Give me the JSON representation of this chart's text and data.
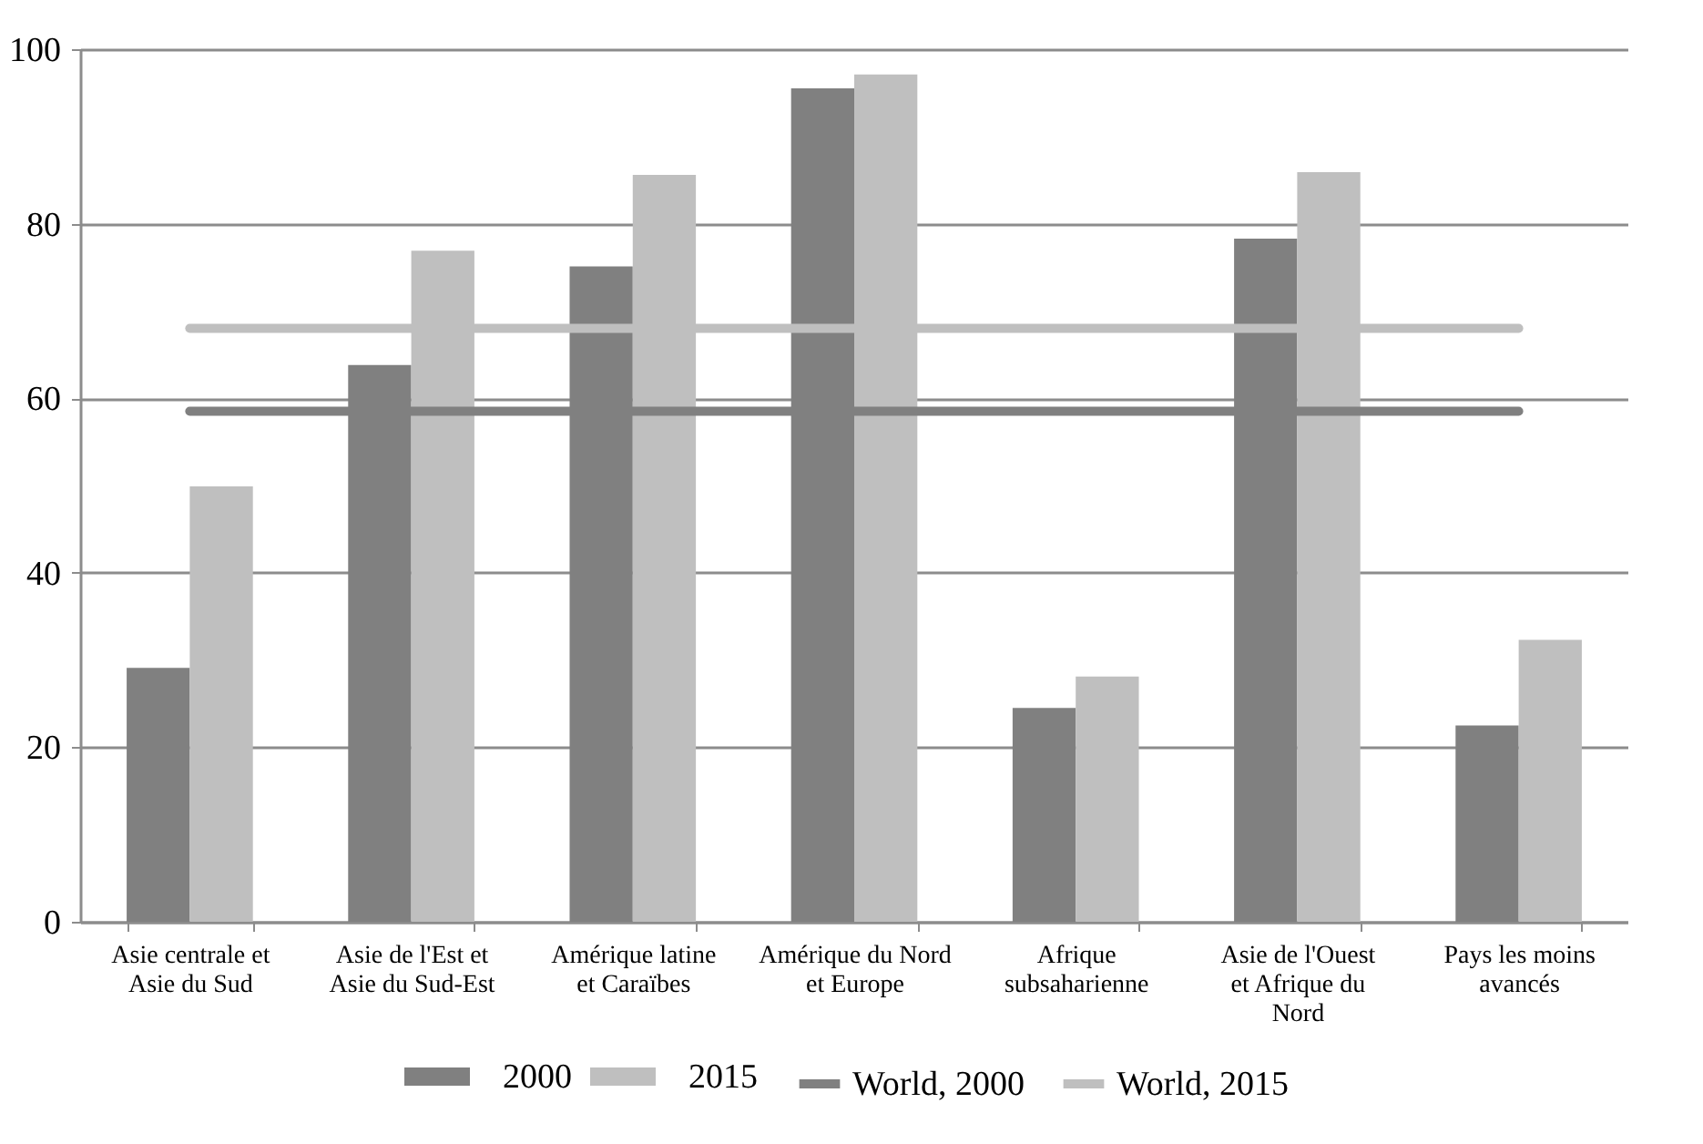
{
  "chart_data": {
    "type": "bar",
    "categories": [
      "Asie centrale et Asie du Sud",
      "Asie de l'Est et Asie du Sud-Est",
      "Amérique latine et Caraïbes",
      "Amérique du Nord et Europe",
      "Afrique subsaharienne",
      "Asie de l'Ouest et Afrique du Nord",
      "Pays les moins avancés"
    ],
    "series": [
      {
        "name": "2000",
        "color": "#808080",
        "values": [
          29.1,
          63.8,
          75.1,
          95.5,
          24.5,
          78.3,
          22.5
        ]
      },
      {
        "name": "2015",
        "color": "#bfbfbf",
        "values": [
          49.9,
          76.9,
          85.6,
          97.1,
          28.1,
          85.9,
          32.3
        ]
      },
      {
        "name": "World, 2000",
        "type": "line",
        "color": "#808080",
        "values": [
          58.5,
          58.5,
          58.5,
          58.5,
          58.5,
          58.5,
          58.5
        ]
      },
      {
        "name": "World, 2015",
        "type": "line",
        "color": "#bfbfbf",
        "values": [
          68,
          68,
          68,
          68,
          68,
          68,
          68
        ]
      }
    ],
    "ylim": [
      0,
      100
    ],
    "yticks": [
      0,
      20,
      40,
      60,
      80,
      100
    ],
    "grid": "y",
    "legend": "bottom"
  }
}
